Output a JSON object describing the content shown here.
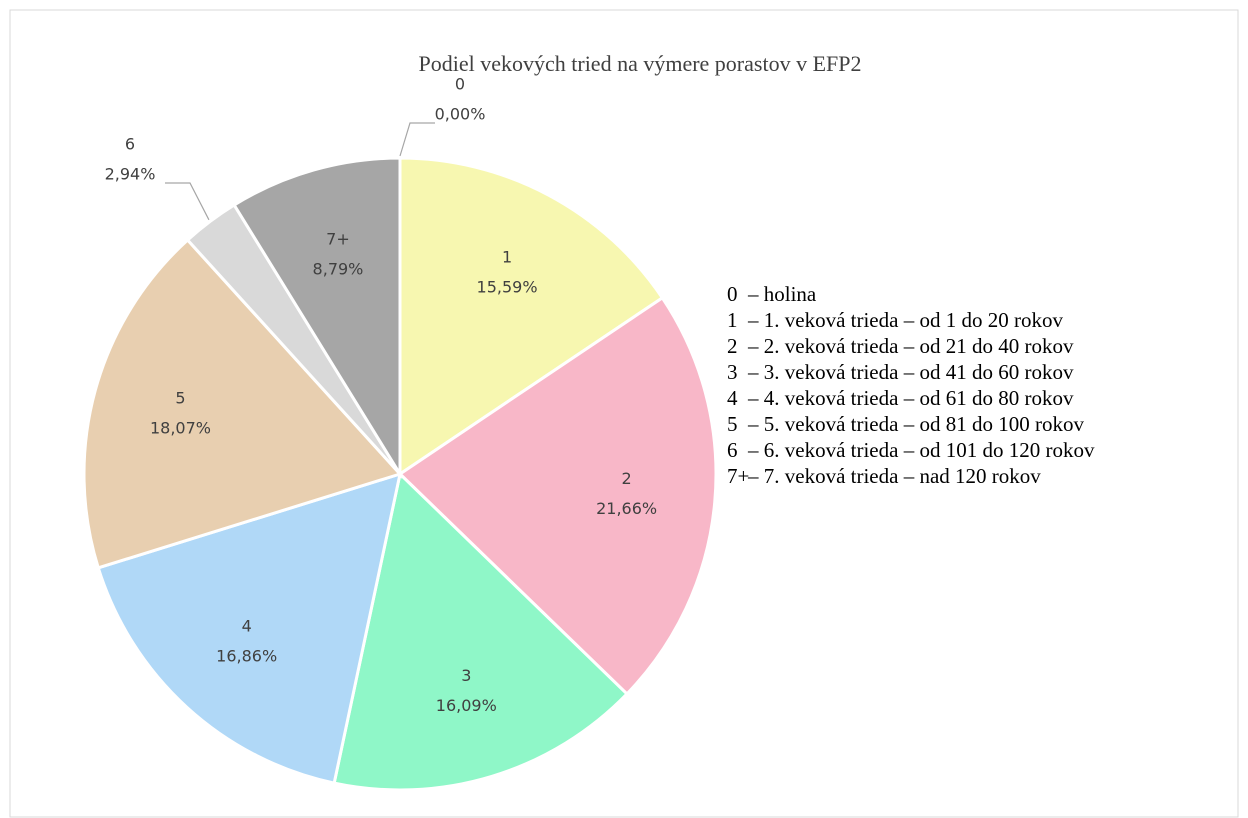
{
  "chart_data": {
    "type": "pie",
    "title": "Podiel vekových tried na výmere porastov v EFP2",
    "categories": [
      "0",
      "1",
      "2",
      "3",
      "4",
      "5",
      "6",
      "7+"
    ],
    "values": [
      0,
      15.59,
      21.66,
      16.09,
      16.86,
      18.07,
      2.94,
      8.79
    ],
    "value_labels": [
      "0,00%",
      "15,59%",
      "21,66%",
      "16,09%",
      "16,86%",
      "18,07%",
      "2,94%",
      "8,79%"
    ],
    "colors": [
      "#f2b8a0",
      "#f7f7b0",
      "#f8b7c8",
      "#8ff7c8",
      "#b0d8f7",
      "#e8cfb0",
      "#d9d9d9",
      "#a6a6a6"
    ],
    "legend": [
      {
        "key": "0",
        "text": "–  holina"
      },
      {
        "key": "1",
        "text": "– 1. veková trieda – od 1 do 20 rokov"
      },
      {
        "key": "2",
        "text": "– 2. veková trieda – od 21 do 40 rokov"
      },
      {
        "key": "3",
        "text": "– 3. veková trieda – od 41 do 60 rokov"
      },
      {
        "key": "4",
        "text": "– 4. veková trieda – od 61 do 80 rokov"
      },
      {
        "key": "5",
        "text": "– 5. veková trieda – od 81 do 100 rokov"
      },
      {
        "key": "6",
        "text": "– 6. veková trieda – od 101 do 120 rokov"
      },
      {
        "key": "7+",
        "text": "– 7. veková trieda – nad 120 rokov"
      }
    ]
  }
}
